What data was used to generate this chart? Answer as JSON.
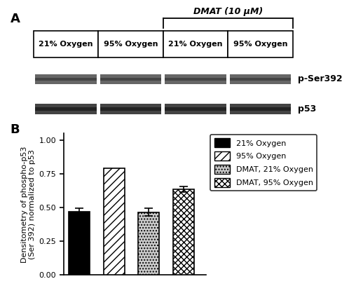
{
  "panel_A_label": "A",
  "panel_B_label": "B",
  "dmat_label": "DMAT (10 μM)",
  "lane_labels": [
    "21% Oxygen",
    "95% Oxygen",
    "21% Oxygen",
    "95% Oxygen"
  ],
  "band_labels": [
    "p-Ser392",
    "p53"
  ],
  "bar_values": [
    0.47,
    0.79,
    0.465,
    0.635
  ],
  "bar_errors": [
    0.025,
    0.0,
    0.03,
    0.02
  ],
  "categories": [
    "21% Oxygen",
    "95% Oxygen",
    "DMAT, 21% Oxygen",
    "DMAT, 95% Oxygen"
  ],
  "ylabel_line1": "Densitometry of phospho-p53",
  "ylabel_line2": "(Ser 392) normalized to p53",
  "ylim": [
    0,
    1.05
  ],
  "yticks": [
    0.0,
    0.25,
    0.5,
    0.75,
    1.0
  ],
  "ytick_labels": [
    "0.00",
    "0.25",
    "0.50",
    "0.75",
    "1.00"
  ],
  "background_color": "#ffffff",
  "font_size_labels": 8,
  "font_size_ticks": 8,
  "font_size_panel": 13,
  "bar_width": 0.6,
  "bar_positions": [
    1,
    2,
    3,
    4
  ]
}
